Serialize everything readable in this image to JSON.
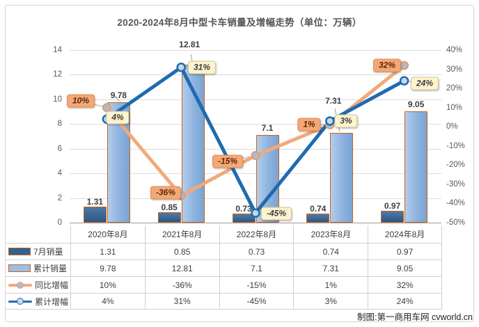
{
  "chart_data": {
    "type": "combo",
    "title": "2020-2024年8月中型卡车销量及增幅走势（单位：万辆）",
    "categories": [
      "2020年8月",
      "2021年8月",
      "2022年8月",
      "2023年8月",
      "2024年8月"
    ],
    "series": [
      {
        "name": "7月销量",
        "type": "bar",
        "axis": "left",
        "values": [
          1.31,
          0.85,
          0.73,
          0.74,
          0.97
        ],
        "labels": [
          "1.31",
          "0.85",
          "0.73",
          "0.74",
          "0.97"
        ]
      },
      {
        "name": "累计销量",
        "type": "bar",
        "axis": "left",
        "values": [
          9.78,
          12.81,
          7.1,
          7.31,
          9.05
        ],
        "labels": [
          "9.78",
          "12.81",
          "7.1",
          "7.31",
          "9.05"
        ]
      },
      {
        "name": "同比增幅",
        "type": "line",
        "axis": "right",
        "values": [
          10,
          -36,
          -15,
          1,
          32
        ],
        "labels": [
          "10%",
          "-36%",
          "-15%",
          "1%",
          "32%"
        ]
      },
      {
        "name": "累计增幅",
        "type": "line",
        "axis": "right",
        "values": [
          4,
          31,
          -45,
          3,
          24
        ],
        "labels": [
          "4%",
          "31%",
          "-45%",
          "3%",
          "24%"
        ]
      }
    ],
    "left_axis": {
      "min": 0,
      "max": 14,
      "ticks": [
        14,
        12,
        10,
        8,
        6,
        4,
        2,
        0
      ]
    },
    "right_axis": {
      "min": -50,
      "max": 40,
      "ticks": [
        40,
        30,
        20,
        10,
        0,
        -10,
        -20,
        -30,
        -40,
        -50
      ],
      "tick_labels": [
        "40%",
        "30%",
        "20%",
        "10%",
        "0%",
        "-10%",
        "-20%",
        "-30%",
        "-40%",
        "-50%"
      ]
    },
    "grid": "horizontal-major",
    "legend_position": "table-left",
    "colors": {
      "bar_monthly": "#31608f",
      "bar_cumulative": "#9dbfe4",
      "bar_border": "#c4631c",
      "line_yoy": "#f1a97c",
      "line_cumulative": "#1e6bb0",
      "callout_orange_bg": "#f4a876",
      "callout_cream_bg": "#fdf3cf",
      "gridline": "#dcdcdc"
    }
  },
  "footer": {
    "credit": "制图:第一商用车网 cvworld.cn"
  }
}
